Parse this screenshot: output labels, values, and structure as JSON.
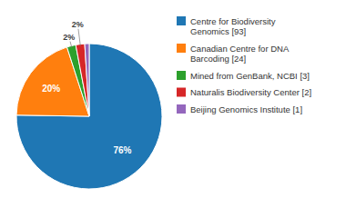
{
  "chart_data": {
    "type": "pie",
    "categories": [
      "Centre for Biodiversity\nGenomics [93]",
      "Canadian Centre for DNA\nBarcoding [24]",
      "Mined from GenBank, NCBI [3]",
      "Naturalis Biodiversity Center [2]",
      "Beijing Genomics Institute [1]"
    ],
    "values": [
      76,
      20,
      2,
      2,
      1
    ],
    "value_labels": [
      "76%",
      "20%",
      "2%",
      "2%",
      null
    ],
    "data_labels": true,
    "legend": "right"
  }
}
